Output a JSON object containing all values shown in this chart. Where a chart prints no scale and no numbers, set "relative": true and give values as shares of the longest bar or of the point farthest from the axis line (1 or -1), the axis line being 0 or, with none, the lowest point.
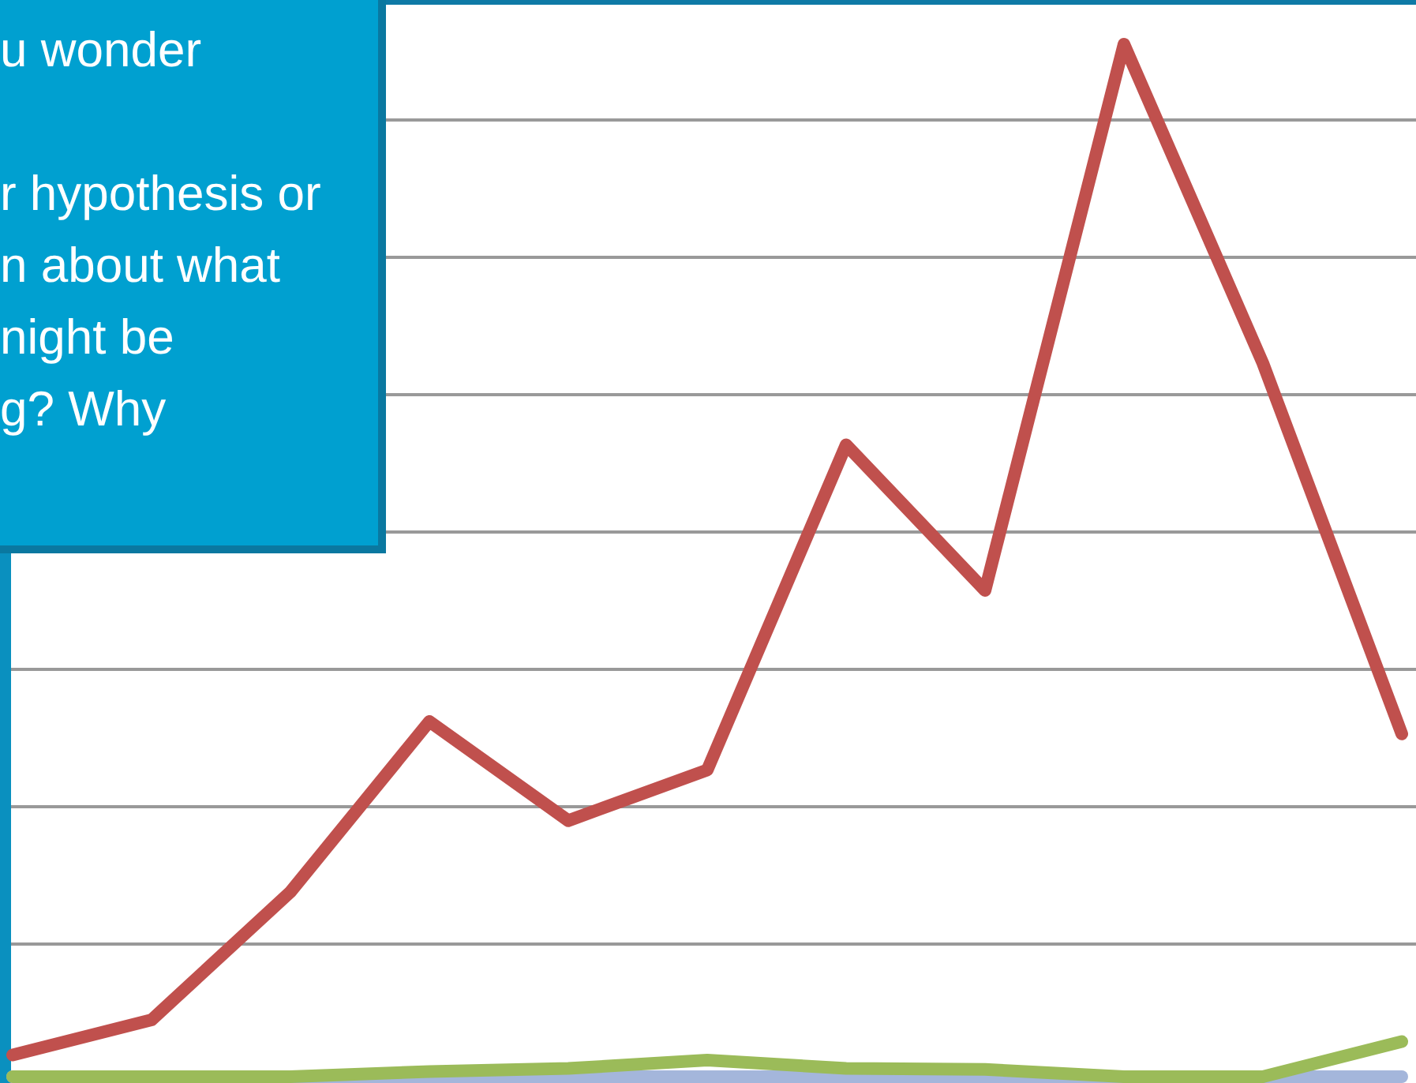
{
  "chart_data": {
    "type": "line",
    "relative": true,
    "grid": "y",
    "categories": [
      null,
      null,
      null,
      null,
      null,
      null,
      null,
      null,
      null,
      null,
      null
    ],
    "series": [
      {
        "color": "#a4b6db",
        "values": [
          0,
          0,
          0,
          0,
          0,
          0,
          0,
          0,
          0,
          0,
          0
        ]
      },
      {
        "color": "#9bbb59",
        "values": [
          0,
          0,
          0,
          0.005,
          0.008,
          0.016,
          0.008,
          0.007,
          0,
          0,
          0.034
        ]
      },
      {
        "color": "#c0504d",
        "values": [
          0.021,
          0.055,
          0.179,
          0.344,
          0.248,
          0.297,
          0.612,
          0.471,
          1,
          0.691,
          0.332
        ]
      }
    ],
    "annotations": [
      "u wonder\n\nr hypothesis or\nn about what\nnight be\ng? Why"
    ]
  }
}
